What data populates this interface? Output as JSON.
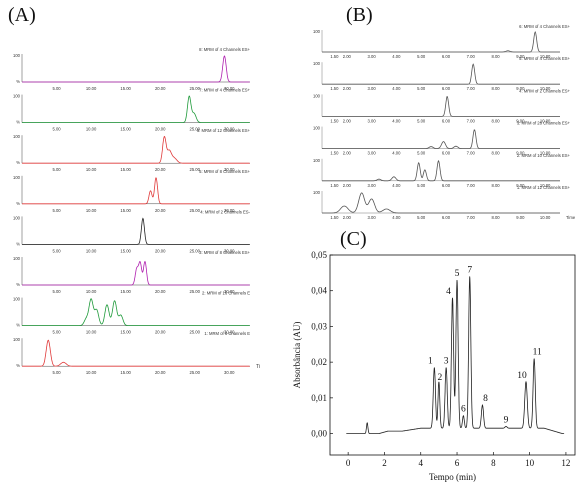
{
  "panels": {
    "A": "(A)",
    "B": "(B)",
    "C": "(C)"
  },
  "chart_data": [
    {
      "panel": "(A)",
      "type": "line",
      "x_axis_end_label": "Ti",
      "xticks": [
        5.0,
        10.0,
        15.0,
        20.0,
        25.0,
        30.0
      ],
      "xlim": [
        0,
        33
      ],
      "traces": [
        {
          "label": "8: MRM of 4 Channels ES+",
          "color": "#b020b0",
          "ymax": "100",
          "peaks": [
            [
              29.3,
              1.0,
              0.25
            ]
          ]
        },
        {
          "label": "7: MRM of 4 Channels ES+",
          "color": "#1e9a3a",
          "ymax": "100",
          "peaks": [
            [
              24.2,
              1.0,
              0.25
            ],
            [
              24.9,
              0.35,
              0.3
            ]
          ]
        },
        {
          "label": "6: MRM of 12 Channels ES+",
          "color": "#e03a3a",
          "ymax": "100",
          "peaks": [
            [
              20.6,
              1.0,
              0.25
            ],
            [
              21.3,
              0.45,
              0.3
            ],
            [
              22.0,
              0.2,
              0.4
            ]
          ]
        },
        {
          "label": "5: MRM of 8 Channels ES+",
          "color": "#e03a3a",
          "ymax": "100",
          "peaks": [
            [
              19.4,
              1.0,
              0.22
            ],
            [
              18.6,
              0.5,
              0.22
            ]
          ]
        },
        {
          "label": "4: MRM of 2 Channels ES-",
          "color": "#222222",
          "ymax": "100",
          "peaks": [
            [
              17.5,
              1.0,
              0.22
            ]
          ]
        },
        {
          "label": "3: MRM of 8 Channels ES+",
          "color": "#b020b0",
          "ymax": "100",
          "peaks": [
            [
              16.6,
              0.6,
              0.22
            ],
            [
              17.1,
              0.85,
              0.22
            ],
            [
              17.8,
              0.9,
              0.22
            ]
          ]
        },
        {
          "label": "2: MRM of 16 Channels E",
          "color": "#1e9a3a",
          "ymax": "100",
          "peaks": [
            [
              10.0,
              1.0,
              0.3
            ],
            [
              10.8,
              0.6,
              0.3
            ],
            [
              12.3,
              0.8,
              0.3
            ],
            [
              13.4,
              0.95,
              0.3
            ],
            [
              14.3,
              0.4,
              0.3
            ],
            [
              9.3,
              0.25,
              0.3
            ]
          ]
        },
        {
          "label": "1: MRM of 6 Channels E",
          "color": "#e03a3a",
          "ymax": "100",
          "peaks": [
            [
              3.8,
              1.0,
              0.3
            ],
            [
              6.0,
              0.15,
              0.4
            ]
          ]
        }
      ]
    },
    {
      "panel": "(B)",
      "type": "line",
      "x_axis_end_label": "Time",
      "xticks": [
        1.5,
        2.0,
        3.0,
        4.0,
        5.0,
        6.0,
        7.0,
        8.0,
        9.0,
        10.0
      ],
      "xlim": [
        1.0,
        10.6
      ],
      "traces": [
        {
          "label": "6: MRM of 4 Channels ES+",
          "color": "#555555",
          "ymax": "100",
          "peaks": [
            [
              9.6,
              1.0,
              0.06
            ],
            [
              8.5,
              0.06,
              0.08
            ]
          ]
        },
        {
          "label": "5: MRM of 4 Channels ES+",
          "color": "#555555",
          "ymax": "100",
          "peaks": [
            [
              7.1,
              1.0,
              0.06
            ]
          ]
        },
        {
          "label": "4: MRM of 2 Channels ES+",
          "color": "#555555",
          "ymax": "100",
          "peaks": [
            [
              6.05,
              1.0,
              0.06
            ]
          ]
        },
        {
          "label": "3: MRM of 26 Channels ES+",
          "color": "#555555",
          "ymax": "100",
          "peaks": [
            [
              7.15,
              0.95,
              0.06
            ],
            [
              5.9,
              0.35,
              0.08
            ],
            [
              6.4,
              0.12,
              0.08
            ],
            [
              5.4,
              0.1,
              0.08
            ]
          ]
        },
        {
          "label": "2: MRM of 10 Channels ES+",
          "color": "#555555",
          "ymax": "100",
          "peaks": [
            [
              4.9,
              0.9,
              0.06
            ],
            [
              5.15,
              0.55,
              0.06
            ],
            [
              5.7,
              1.0,
              0.06
            ],
            [
              3.9,
              0.2,
              0.08
            ],
            [
              3.3,
              0.08,
              0.08
            ]
          ]
        },
        {
          "label": "1: MRM of 12 Channels ES+",
          "color": "#555555",
          "ymax": "100",
          "peaks": [
            [
              1.9,
              0.35,
              0.15
            ],
            [
              2.6,
              1.0,
              0.12
            ],
            [
              3.0,
              0.7,
              0.12
            ],
            [
              3.6,
              0.2,
              0.15
            ]
          ]
        }
      ]
    },
    {
      "panel": "(C)",
      "type": "line",
      "xlabel": "Tempo (min)",
      "ylabel": "Absorbância (AU)",
      "xlim": [
        -1,
        12.5
      ],
      "ylim": [
        -0.006,
        0.05
      ],
      "xticks": [
        0,
        2,
        4,
        6,
        8,
        10,
        12
      ],
      "yticks": [
        "0,00",
        "0,01",
        "0,02",
        "0,03",
        "0,04",
        "0,05"
      ],
      "series": [
        {
          "peaks": [
            {
              "label": "1",
              "x": 4.75,
              "y": 0.017
            },
            {
              "label": "2",
              "x": 5.0,
              "y": 0.013
            },
            {
              "label": "3",
              "x": 5.4,
              "y": 0.017
            },
            {
              "label": "4",
              "x": 5.75,
              "y": 0.0365
            },
            {
              "label": "5",
              "x": 6.0,
              "y": 0.0415
            },
            {
              "label": "6",
              "x": 6.35,
              "y": 0.0035
            },
            {
              "label": "7",
              "x": 6.7,
              "y": 0.0425
            },
            {
              "label": "8",
              "x": 7.4,
              "y": 0.0065
            },
            {
              "label": "9",
              "x": 8.7,
              "y": 0.0005
            },
            {
              "label": "10",
              "x": 9.8,
              "y": 0.013
            },
            {
              "label": "11",
              "x": 10.25,
              "y": 0.0195
            },
            {
              "label": "",
              "x": 1.05,
              "y": 0.003
            }
          ]
        }
      ]
    }
  ]
}
